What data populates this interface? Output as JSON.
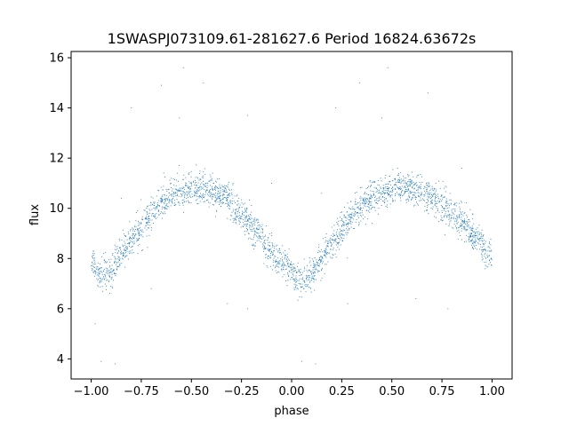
{
  "chart_data": {
    "type": "scatter",
    "title": "1SWASPJ073109.61-281627.6 Period 16824.63672s",
    "xlabel": "phase",
    "ylabel": "flux",
    "xlim": [
      -1.1,
      1.1
    ],
    "ylim": [
      3.2,
      16.25
    ],
    "xticks": [
      -1.0,
      -0.75,
      -0.5,
      -0.25,
      0.0,
      0.25,
      0.5,
      0.75,
      1.0
    ],
    "xtick_labels": [
      "−1.00",
      "−0.75",
      "−0.50",
      "−0.25",
      "0.00",
      "0.25",
      "0.50",
      "0.75",
      "1.00"
    ],
    "yticks": [
      4,
      6,
      8,
      10,
      12,
      14,
      16
    ],
    "ytick_labels": [
      "4",
      "6",
      "8",
      "10",
      "12",
      "14",
      "16"
    ],
    "grid": false,
    "point_color": "#1f77b4",
    "series": [
      {
        "x": [
          -1.0,
          -0.95,
          -0.9,
          -0.85,
          -0.8,
          -0.75,
          -0.7,
          -0.65,
          -0.6,
          -0.55,
          -0.5,
          -0.45,
          -0.4,
          -0.35,
          -0.3,
          -0.25,
          -0.2,
          -0.15,
          -0.1,
          -0.05,
          0.0,
          0.05,
          0.1,
          0.15,
          0.2,
          0.25,
          0.3,
          0.35,
          0.4,
          0.45,
          0.5,
          0.55,
          0.6,
          0.65,
          0.7,
          0.75,
          0.8,
          0.85,
          0.9,
          0.95,
          1.0
        ],
        "y": [
          7.9,
          7.2,
          7.5,
          8.2,
          8.7,
          9.2,
          9.8,
          10.2,
          10.5,
          10.7,
          10.8,
          10.8,
          10.7,
          10.5,
          10.2,
          9.8,
          9.3,
          8.8,
          8.3,
          7.8,
          7.5,
          7.1,
          7.4,
          8.0,
          8.6,
          9.1,
          9.7,
          10.1,
          10.4,
          10.6,
          10.8,
          10.9,
          10.8,
          10.6,
          10.4,
          10.1,
          9.8,
          9.4,
          9.0,
          8.5,
          8.0
        ]
      }
    ],
    "outliers": [
      {
        "x": -0.65,
        "y": 14.9
      },
      {
        "x": -0.54,
        "y": 15.6
      },
      {
        "x": -0.56,
        "y": 13.6
      },
      {
        "x": -0.44,
        "y": 15.0
      },
      {
        "x": -0.8,
        "y": 14.0
      },
      {
        "x": -0.22,
        "y": 13.7
      },
      {
        "x": 0.48,
        "y": 15.6
      },
      {
        "x": 0.34,
        "y": 15.0
      },
      {
        "x": 0.68,
        "y": 14.6
      },
      {
        "x": 0.22,
        "y": 14.0
      },
      {
        "x": 0.45,
        "y": 13.6
      },
      {
        "x": -0.95,
        "y": 3.9
      },
      {
        "x": -0.88,
        "y": 3.8
      },
      {
        "x": 0.05,
        "y": 3.9
      },
      {
        "x": 0.12,
        "y": 3.8
      },
      {
        "x": -0.98,
        "y": 5.4
      },
      {
        "x": -0.32,
        "y": 6.2
      },
      {
        "x": -0.22,
        "y": 6.0
      },
      {
        "x": 0.62,
        "y": 6.4
      },
      {
        "x": 0.78,
        "y": 6.0
      },
      {
        "x": -0.7,
        "y": 6.8
      },
      {
        "x": 0.28,
        "y": 6.2
      },
      {
        "x": -0.1,
        "y": 11.0
      },
      {
        "x": 0.85,
        "y": 11.6
      },
      {
        "x": -0.85,
        "y": 10.4
      },
      {
        "x": 0.15,
        "y": 10.6
      }
    ]
  }
}
